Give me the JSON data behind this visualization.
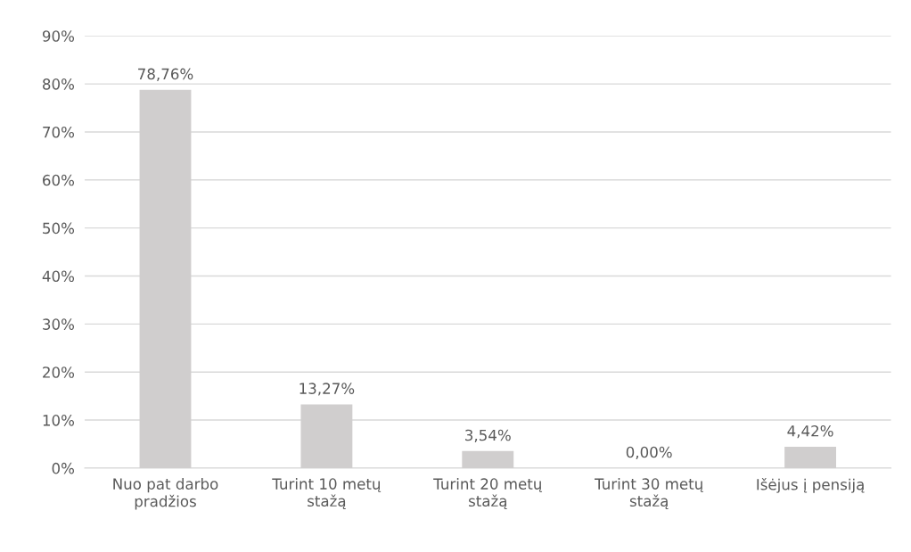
{
  "chart_data": {
    "type": "bar",
    "categories": [
      "Nuo pat darbo\npradžios",
      "Turint 10 metų\nstažą",
      "Turint 20 metų\nstažą",
      "Turint 30 metų\nstažą",
      "Išėjus į pensiją"
    ],
    "values": [
      78.76,
      13.27,
      3.54,
      0.0,
      4.42
    ],
    "value_labels": [
      "78,76%",
      "13,27%",
      "3,54%",
      "0,00%",
      "4,42%"
    ],
    "color": "#d0cece",
    "ylim": [
      0,
      90
    ],
    "yticks": [
      {
        "value": 0,
        "label": "0%"
      },
      {
        "value": 10,
        "label": "10%"
      },
      {
        "value": 20,
        "label": "20%"
      },
      {
        "value": 30,
        "label": "30%"
      },
      {
        "value": 40,
        "label": "40%"
      },
      {
        "value": 50,
        "label": "50%"
      },
      {
        "value": 60,
        "label": "60%"
      },
      {
        "value": 70,
        "label": "70%"
      },
      {
        "value": 80,
        "label": "80%"
      },
      {
        "value": 90,
        "label": "90%"
      }
    ],
    "grid": "y"
  }
}
